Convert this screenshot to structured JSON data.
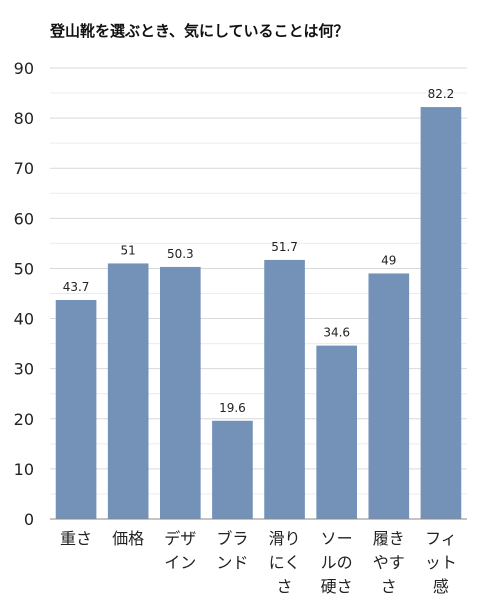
{
  "chart_data": {
    "type": "bar",
    "title": "登山靴を選ぶとき、気にしていることは何？",
    "categories": [
      [
        "重さ"
      ],
      [
        "価格"
      ],
      [
        "デザ",
        "イン"
      ],
      [
        "ブラ",
        "ンド"
      ],
      [
        "滑り",
        "にく",
        "さ"
      ],
      [
        "ソー",
        "ルの",
        "硬さ"
      ],
      [
        "履き",
        "やす",
        "さ"
      ],
      [
        "フィ",
        "ット",
        "感"
      ]
    ],
    "values": [
      43.7,
      51,
      50.3,
      19.6,
      51.7,
      34.6,
      49,
      82.2
    ],
    "value_labels": [
      "43.7",
      "51",
      "50.3",
      "19.6",
      "51.7",
      "34.6",
      "49",
      "82.2"
    ],
    "ylim": [
      0,
      90
    ],
    "yticks": [
      "0",
      "10",
      "20",
      "30",
      "40",
      "50",
      "60",
      "70",
      "80",
      "90"
    ],
    "grid": true,
    "bar_color": "#7492b8",
    "grid_color": "#d9d9d9"
  }
}
